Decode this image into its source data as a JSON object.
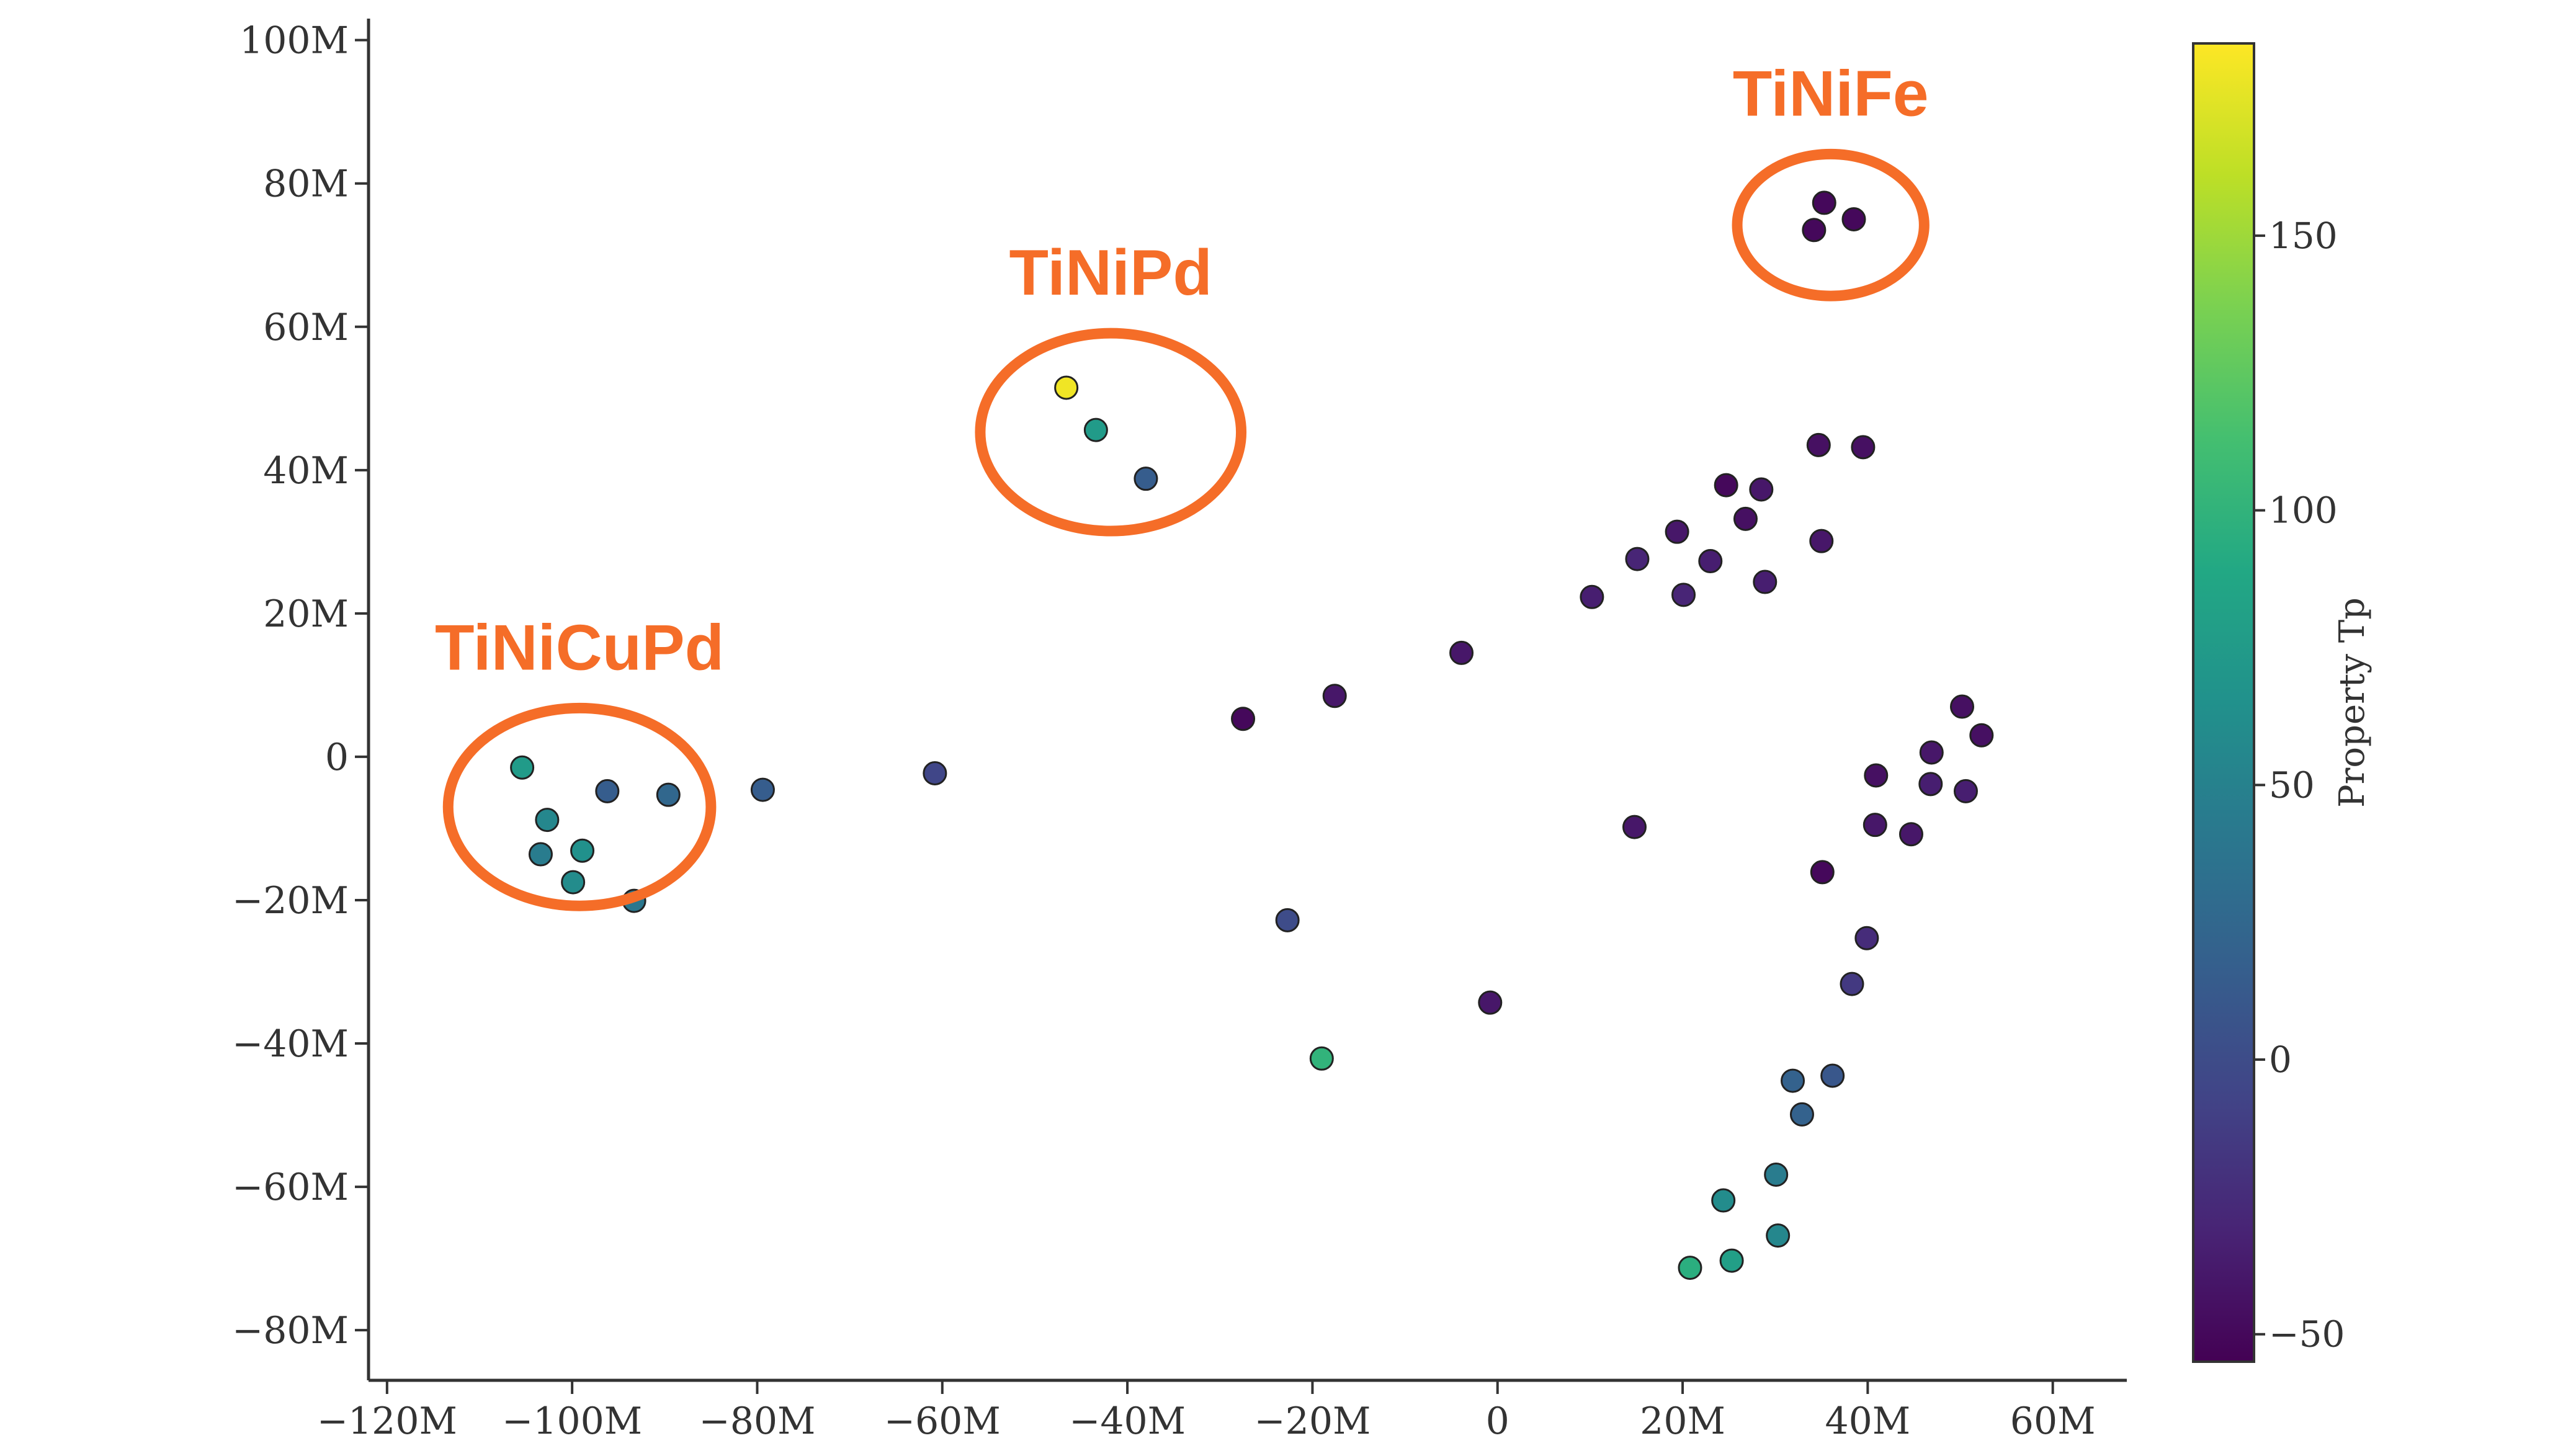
{
  "chart_data": {
    "type": "scatter",
    "title": "",
    "xlabel": "",
    "ylabel": "",
    "xlim": [
      -122,
      68
    ],
    "ylim": [
      -87,
      103
    ],
    "x_ticks": [
      {
        "value": -120,
        "label": "−120M"
      },
      {
        "value": -100,
        "label": "−100M"
      },
      {
        "value": -80,
        "label": "−80M"
      },
      {
        "value": -60,
        "label": "−60M"
      },
      {
        "value": -40,
        "label": "−40M"
      },
      {
        "value": -20,
        "label": "−20M"
      },
      {
        "value": 0,
        "label": "0"
      },
      {
        "value": 20,
        "label": "20M"
      },
      {
        "value": 40,
        "label": "40M"
      },
      {
        "value": 60,
        "label": "60M"
      }
    ],
    "y_ticks": [
      {
        "value": 100,
        "label": "100M"
      },
      {
        "value": 80,
        "label": "80M"
      },
      {
        "value": 60,
        "label": "60M"
      },
      {
        "value": 40,
        "label": "40M"
      },
      {
        "value": 20,
        "label": "20M"
      },
      {
        "value": 0,
        "label": "0"
      },
      {
        "value": -20,
        "label": "−20M"
      },
      {
        "value": -40,
        "label": "−40M"
      },
      {
        "value": -60,
        "label": "−60M"
      },
      {
        "value": -80,
        "label": "−80M"
      }
    ],
    "grid": false,
    "colorbar": {
      "title": "Property Tp",
      "range": [
        -55,
        185
      ],
      "colormap": "viridis",
      "ticks": [
        {
          "value": 150,
          "label": "150"
        },
        {
          "value": 100,
          "label": "100"
        },
        {
          "value": 50,
          "label": "50"
        },
        {
          "value": 0,
          "label": "0"
        },
        {
          "value": -50,
          "label": "−50"
        }
      ]
    },
    "points": [
      {
        "x": -105.4,
        "y": -1.5,
        "c": 75
      },
      {
        "x": -102.7,
        "y": -8.8,
        "c": 55
      },
      {
        "x": -103.4,
        "y": -13.6,
        "c": 45
      },
      {
        "x": -98.9,
        "y": -13.1,
        "c": 65
      },
      {
        "x": -99.9,
        "y": -17.5,
        "c": 60
      },
      {
        "x": -96.2,
        "y": -4.8,
        "c": 15
      },
      {
        "x": -89.6,
        "y": -5.3,
        "c": 25
      },
      {
        "x": -93.3,
        "y": -20.1,
        "c": 40
      },
      {
        "x": -79.4,
        "y": -4.6,
        "c": 15
      },
      {
        "x": -60.8,
        "y": -2.3,
        "c": -5
      },
      {
        "x": -46.6,
        "y": 51.5,
        "c": 180
      },
      {
        "x": -43.4,
        "y": 45.6,
        "c": 75
      },
      {
        "x": -38.0,
        "y": 38.8,
        "c": 15
      },
      {
        "x": -27.5,
        "y": 5.3,
        "c": -50
      },
      {
        "x": -17.6,
        "y": 8.5,
        "c": -40
      },
      {
        "x": -3.9,
        "y": 14.5,
        "c": -40
      },
      {
        "x": -22.7,
        "y": -22.8,
        "c": 0
      },
      {
        "x": -0.8,
        "y": -34.3,
        "c": -40
      },
      {
        "x": -19.0,
        "y": -42.1,
        "c": 100
      },
      {
        "x": 10.2,
        "y": 22.3,
        "c": -35
      },
      {
        "x": 15.1,
        "y": 27.6,
        "c": -30
      },
      {
        "x": 20.1,
        "y": 22.6,
        "c": -30
      },
      {
        "x": 19.4,
        "y": 31.4,
        "c": -40
      },
      {
        "x": 23.0,
        "y": 27.3,
        "c": -35
      },
      {
        "x": 24.7,
        "y": 37.9,
        "c": -50
      },
      {
        "x": 26.8,
        "y": 33.2,
        "c": -45
      },
      {
        "x": 28.5,
        "y": 37.3,
        "c": -40
      },
      {
        "x": 28.9,
        "y": 24.4,
        "c": -35
      },
      {
        "x": 34.7,
        "y": 43.5,
        "c": -45
      },
      {
        "x": 39.5,
        "y": 43.2,
        "c": -45
      },
      {
        "x": 35.0,
        "y": 30.1,
        "c": -40
      },
      {
        "x": 35.3,
        "y": 77.3,
        "c": -50
      },
      {
        "x": 38.5,
        "y": 75.0,
        "c": -50
      },
      {
        "x": 34.2,
        "y": 73.5,
        "c": -50
      },
      {
        "x": 50.2,
        "y": 7.0,
        "c": -45
      },
      {
        "x": 52.3,
        "y": 3.0,
        "c": -45
      },
      {
        "x": 46.9,
        "y": 0.6,
        "c": -40
      },
      {
        "x": 40.9,
        "y": -2.6,
        "c": -45
      },
      {
        "x": 46.8,
        "y": -3.8,
        "c": -35
      },
      {
        "x": 50.6,
        "y": -4.8,
        "c": -35
      },
      {
        "x": 40.8,
        "y": -9.5,
        "c": -40
      },
      {
        "x": 44.7,
        "y": -10.8,
        "c": -40
      },
      {
        "x": 14.8,
        "y": -9.8,
        "c": -40
      },
      {
        "x": 35.1,
        "y": -16.1,
        "c": -50
      },
      {
        "x": 39.9,
        "y": -25.3,
        "c": -25
      },
      {
        "x": 38.3,
        "y": -31.7,
        "c": -15
      },
      {
        "x": 36.2,
        "y": -44.5,
        "c": 10
      },
      {
        "x": 31.9,
        "y": -45.2,
        "c": 20
      },
      {
        "x": 32.9,
        "y": -49.9,
        "c": 20
      },
      {
        "x": 30.1,
        "y": -58.3,
        "c": 45
      },
      {
        "x": 24.4,
        "y": -61.9,
        "c": 60
      },
      {
        "x": 30.3,
        "y": -66.8,
        "c": 55
      },
      {
        "x": 25.3,
        "y": -70.3,
        "c": 80
      },
      {
        "x": 20.8,
        "y": -71.3,
        "c": 95
      }
    ],
    "annotations": [
      {
        "label": "TiNiCuPd",
        "cx": -99.2,
        "cy": -7.0,
        "rx": 14.2,
        "ry": 13.8
      },
      {
        "label": "TiNiPd",
        "cx": -41.8,
        "cy": 45.3,
        "rx": 14.1,
        "ry": 13.8
      },
      {
        "label": "TiNiFe",
        "cx": 36.0,
        "cy": 74.2,
        "rx": 10.1,
        "ry": 9.9
      }
    ]
  },
  "colors": {
    "annotation": "#F56D28",
    "axis": "#333333",
    "marker_edge": "#222222"
  }
}
